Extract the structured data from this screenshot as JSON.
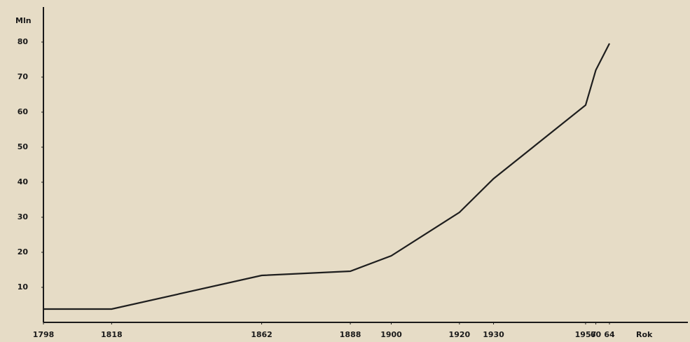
{
  "chart_data": {
    "type": "line",
    "x_label": "Rok",
    "y_label": "Mln",
    "x": [
      1798,
      1818,
      1862,
      1888,
      1900,
      1920,
      1930,
      1957,
      1960,
      1964
    ],
    "series": [
      {
        "name": null,
        "color": "#1e1e1e",
        "values": [
          3.8,
          3.8,
          13.4,
          14.6,
          19,
          31.4,
          41,
          62,
          72,
          79.6
        ]
      }
    ],
    "xlim": [
      1798,
      1987
    ],
    "ylim": [
      0,
      90
    ],
    "xticks": [
      1798,
      1818,
      1862,
      1888,
      1900,
      1920,
      1930,
      1957,
      {
        "value": 1960,
        "label": "60"
      },
      {
        "value": 1964,
        "label": "64"
      }
    ],
    "yticks": [
      10,
      20,
      30,
      40,
      50,
      60,
      70,
      80
    ]
  }
}
